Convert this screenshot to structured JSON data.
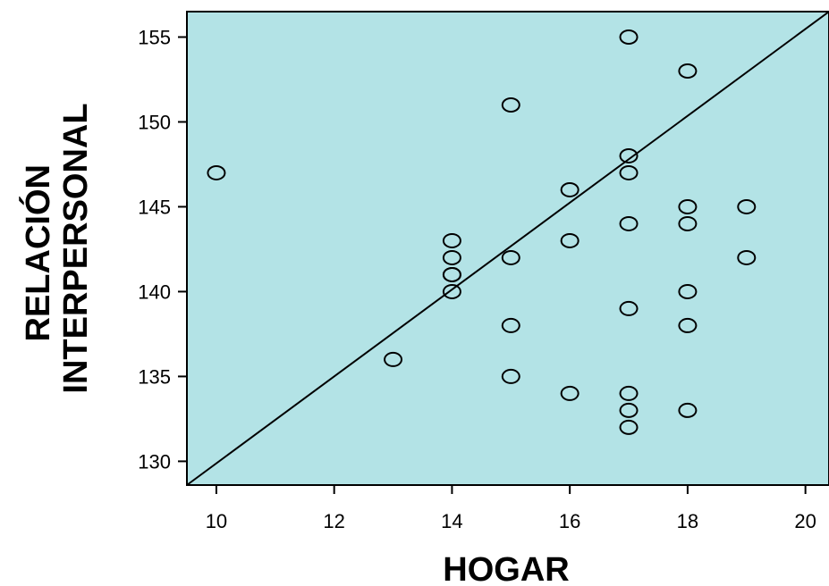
{
  "chart_data": {
    "type": "scatter",
    "xlabel": "HOGAR",
    "ylabel_lines": [
      "RELACIÓN",
      "INTERPERSONAL"
    ],
    "xlim": [
      9.5,
      20.4
    ],
    "ylim": [
      128.6,
      156.5
    ],
    "x_ticks": [
      10,
      12,
      14,
      16,
      18,
      20
    ],
    "y_ticks": [
      130,
      135,
      140,
      145,
      150,
      155
    ],
    "points": [
      {
        "x": 10,
        "y": 147
      },
      {
        "x": 13,
        "y": 136
      },
      {
        "x": 14,
        "y": 143
      },
      {
        "x": 14,
        "y": 142
      },
      {
        "x": 14,
        "y": 141
      },
      {
        "x": 14,
        "y": 141
      },
      {
        "x": 14,
        "y": 140
      },
      {
        "x": 15,
        "y": 151
      },
      {
        "x": 15,
        "y": 142
      },
      {
        "x": 15,
        "y": 138
      },
      {
        "x": 15,
        "y": 135
      },
      {
        "x": 16,
        "y": 146
      },
      {
        "x": 16,
        "y": 143
      },
      {
        "x": 16,
        "y": 134
      },
      {
        "x": 17,
        "y": 155
      },
      {
        "x": 17,
        "y": 148
      },
      {
        "x": 17,
        "y": 147
      },
      {
        "x": 17,
        "y": 144
      },
      {
        "x": 17,
        "y": 139
      },
      {
        "x": 17,
        "y": 134
      },
      {
        "x": 17,
        "y": 133
      },
      {
        "x": 17,
        "y": 132
      },
      {
        "x": 18,
        "y": 153
      },
      {
        "x": 18,
        "y": 145
      },
      {
        "x": 18,
        "y": 144
      },
      {
        "x": 18,
        "y": 140
      },
      {
        "x": 18,
        "y": 138
      },
      {
        "x": 18,
        "y": 133
      },
      {
        "x": 19,
        "y": 145
      },
      {
        "x": 19,
        "y": 142
      }
    ],
    "reference_line": {
      "x1": 9.5,
      "y1": 128.6,
      "x2": 20.4,
      "y2": 156.5
    },
    "grid": false,
    "plot_background": "#b3e3e6",
    "marker_color": "#000000"
  }
}
